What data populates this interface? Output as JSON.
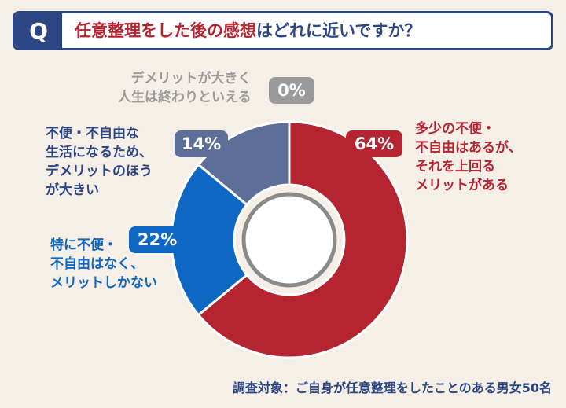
{
  "question": {
    "badge": "Q",
    "highlight": "任意整理をした後の感想",
    "rest": "はどれに近いですか？"
  },
  "chart_data": {
    "type": "pie",
    "title": "任意整理をした後の感想はどれに近いですか？",
    "slices": [
      {
        "label": "多少の不便・不自由はあるが、それを上回るメリットがある",
        "lines": [
          "多少の不便・",
          "不自由はあるが、",
          "それを上回る",
          "メリットがある"
        ],
        "value": 64,
        "pct_label": "64%",
        "color": "#b52431"
      },
      {
        "label": "特に不便・不自由はなく、メリットしかない",
        "lines": [
          "特に不便・",
          "不自由はなく、",
          "メリットしかない"
        ],
        "value": 22,
        "pct_label": "22%",
        "color": "#0f67c4"
      },
      {
        "label": "不便・不自由な生活になるため、デメリットのほうが大きい",
        "lines": [
          "不便・不自由な",
          "生活になるため、",
          "デメリットのほう",
          "が大きい"
        ],
        "value": 14,
        "pct_label": "14%",
        "color": "#5d6f99"
      },
      {
        "label": "デメリットが大きく人生は終わりといえる",
        "lines": [
          "デメリットが大きく",
          "人生は終わりといえる"
        ],
        "value": 0,
        "pct_label": "0%",
        "color": "#9b9b9b"
      }
    ]
  },
  "footnote": "調査対象：ご自身が任意整理をしたことのある男女50名"
}
